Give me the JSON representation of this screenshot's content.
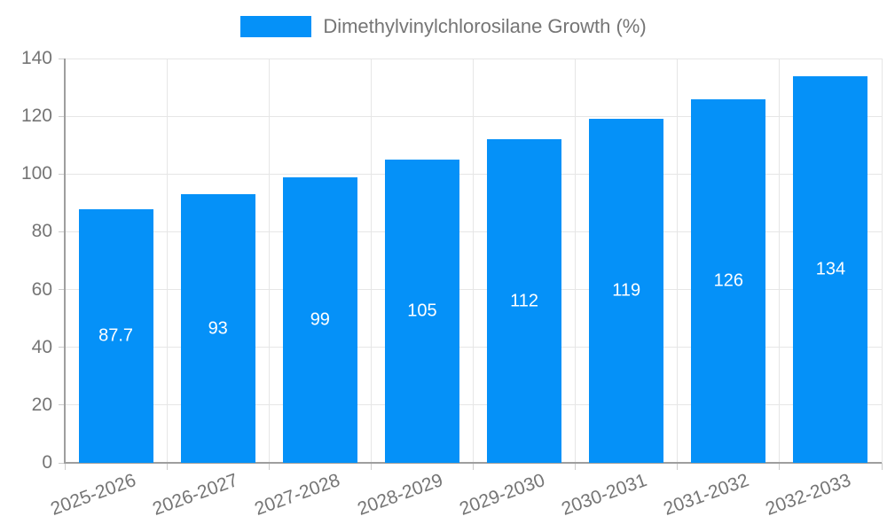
{
  "legend": {
    "label": "Dimethylvinylchlorosilane Growth (%)"
  },
  "chart_data": {
    "type": "bar",
    "title": "Dimethylvinylchlorosilane Growth (%)",
    "categories": [
      "2025-2026",
      "2026-2027",
      "2027-2028",
      "2028-2029",
      "2029-2030",
      "2030-2031",
      "2031-2032",
      "2032-2033"
    ],
    "values": [
      87.7,
      93,
      99,
      105,
      112,
      119,
      126,
      134
    ],
    "value_labels": [
      "87.7",
      "93",
      "99",
      "105",
      "112",
      "119",
      "126",
      "134"
    ],
    "xlabel": "",
    "ylabel": "",
    "ylim": [
      0,
      140
    ],
    "yticks": [
      0,
      20,
      40,
      60,
      80,
      100,
      120,
      140
    ],
    "grid": true,
    "legend_position": "top-center",
    "colors": {
      "bar": "#0591f8",
      "value_label": "#ffffff",
      "axis_line": "#9e9e9e",
      "gridline": "#e6e6e6",
      "tick": "#cccccc",
      "tick_label": "#757575"
    }
  }
}
